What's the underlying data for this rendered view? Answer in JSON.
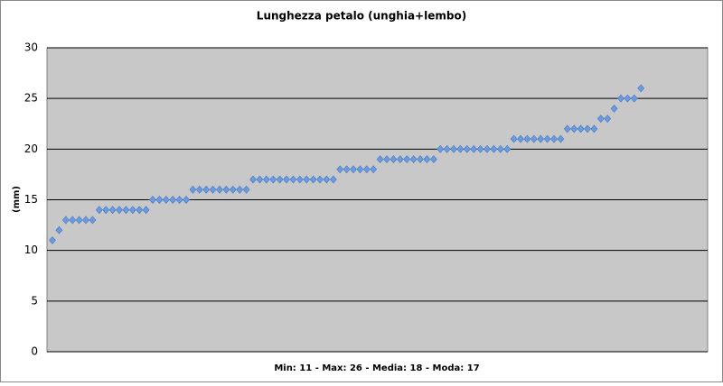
{
  "chart_data": {
    "type": "scatter",
    "title": "Lunghezza petalo (unghia+lembo)",
    "y_label": "(mm)",
    "x_label": "Min: 11 - Max: 26 - Media: 18 - Moda: 17",
    "categories": [
      null,
      null,
      null,
      null,
      null,
      null,
      null,
      null,
      null,
      null,
      null,
      null,
      null,
      null,
      null,
      null,
      null,
      null,
      null,
      null,
      null,
      null,
      null,
      null,
      null,
      null,
      null,
      null,
      null,
      null,
      null,
      null,
      null,
      null,
      null,
      null,
      null,
      null,
      null,
      null,
      null,
      null,
      null,
      null,
      null,
      null,
      null,
      null,
      null,
      null,
      null,
      null,
      null,
      null,
      null,
      null,
      null,
      null,
      null,
      null,
      null,
      null,
      null,
      null,
      null,
      null,
      null,
      null,
      null,
      null,
      null,
      null,
      null,
      null,
      null,
      null,
      null,
      null,
      null,
      null,
      null,
      null,
      null,
      null,
      null,
      null,
      null,
      null,
      null
    ],
    "values": [
      11,
      12,
      13,
      13,
      13,
      13,
      13,
      14,
      14,
      14,
      14,
      14,
      14,
      14,
      14,
      15,
      15,
      15,
      15,
      15,
      15,
      16,
      16,
      16,
      16,
      16,
      16,
      16,
      16,
      16,
      17,
      17,
      17,
      17,
      17,
      17,
      17,
      17,
      17,
      17,
      17,
      17,
      17,
      18,
      18,
      18,
      18,
      18,
      18,
      19,
      19,
      19,
      19,
      19,
      19,
      19,
      19,
      19,
      20,
      20,
      20,
      20,
      20,
      20,
      20,
      20,
      20,
      20,
      20,
      21,
      21,
      21,
      21,
      21,
      21,
      21,
      21,
      22,
      22,
      22,
      22,
      22,
      23,
      23,
      24,
      25,
      25,
      25,
      26
    ],
    "color": "#6a9be0",
    "ylim": [
      0,
      30
    ],
    "yticks": [
      0,
      5,
      10,
      15,
      20,
      25,
      30
    ],
    "grid": true
  }
}
